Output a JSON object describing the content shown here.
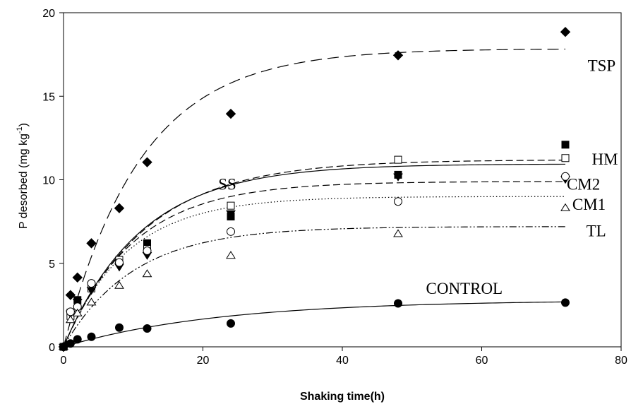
{
  "chart_data": {
    "type": "scatter",
    "title": "",
    "xlabel": "Shaking time(h)",
    "ylabel_main": "P desorbed (mg kg",
    "ylabel_sup": "-1",
    "ylabel_close": ")",
    "xlim": [
      0,
      80
    ],
    "ylim": [
      0,
      20
    ],
    "xticks": [
      0,
      20,
      40,
      60,
      80
    ],
    "yticks": [
      0,
      5,
      10,
      15,
      20
    ],
    "grid": false,
    "legend": "none",
    "series": [
      {
        "name": "TSP",
        "marker": "diamond-filled",
        "line": "long-dash",
        "x": [
          0,
          1,
          2,
          4,
          8,
          12,
          24,
          48,
          72
        ],
        "y": [
          0,
          3.1,
          4.15,
          6.2,
          8.3,
          11.05,
          13.95,
          17.45,
          18.85
        ],
        "fit": {
          "a": 17.85,
          "k": 0.09
        }
      },
      {
        "name": "HM",
        "marker": "square-filled",
        "line": "dash",
        "x": [
          0,
          1,
          2,
          4,
          8,
          12,
          24,
          48,
          72
        ],
        "y": [
          0,
          2.05,
          2.8,
          3.6,
          5.2,
          6.2,
          7.8,
          10.3,
          12.1
        ],
        "fit": {
          "a": 11.2,
          "k": 0.085
        }
      },
      {
        "name": "SS",
        "marker": "square-open",
        "line": "solid",
        "x": [
          0,
          1,
          2,
          4,
          8,
          12,
          24,
          48,
          72
        ],
        "y": [
          0,
          1.85,
          2.3,
          3.5,
          5.2,
          5.85,
          8.45,
          11.2,
          11.3
        ],
        "fit": {
          "a": 10.95,
          "k": 0.09
        }
      },
      {
        "name": "CM2",
        "marker": "triangle-down-filled",
        "line": "dash",
        "x": [
          0,
          1,
          2,
          4,
          8,
          12,
          24,
          48,
          72
        ],
        "y": [
          0,
          2.0,
          2.7,
          3.4,
          4.8,
          5.5,
          8.0,
          10.2,
          10.05
        ],
        "fit": {
          "a": 9.9,
          "k": 0.1
        }
      },
      {
        "name": "CM1",
        "marker": "circle-open",
        "line": "dot",
        "x": [
          0,
          1,
          2,
          4,
          8,
          12,
          24,
          48,
          72
        ],
        "y": [
          0,
          2.1,
          2.4,
          3.8,
          5.05,
          5.75,
          6.9,
          8.7,
          10.2
        ],
        "fit": {
          "a": 9.0,
          "k": 0.11
        }
      },
      {
        "name": "TL",
        "marker": "triangle-up-open",
        "line": "dash-dot-dot",
        "x": [
          0,
          1,
          2,
          4,
          8,
          12,
          24,
          48,
          72
        ],
        "y": [
          0,
          1.6,
          2.0,
          2.65,
          3.65,
          4.35,
          5.45,
          6.75,
          8.3
        ],
        "fit": {
          "a": 7.2,
          "k": 0.1
        }
      },
      {
        "name": "CONTROL",
        "marker": "circle-filled",
        "line": "solid",
        "x": [
          0,
          1,
          2,
          4,
          8,
          12,
          24,
          48,
          72
        ],
        "y": [
          0,
          0.2,
          0.45,
          0.6,
          1.15,
          1.1,
          1.4,
          2.6,
          2.65
        ],
        "fit": {
          "a": 2.8,
          "k": 0.045
        }
      }
    ],
    "annotations": [
      {
        "text": "TSP",
        "x": 75.2,
        "y": 16.85
      },
      {
        "text": "HM",
        "x": 75.8,
        "y": 11.25
      },
      {
        "text": "SS",
        "x": 22.2,
        "y": 9.75
      },
      {
        "text": "CM2",
        "x": 72.2,
        "y": 9.75
      },
      {
        "text": "CM1",
        "x": 73.0,
        "y": 8.55
      },
      {
        "text": "TL",
        "x": 75.0,
        "y": 6.95
      },
      {
        "text": "CONTROL",
        "x": 52.0,
        "y": 3.5
      }
    ]
  }
}
